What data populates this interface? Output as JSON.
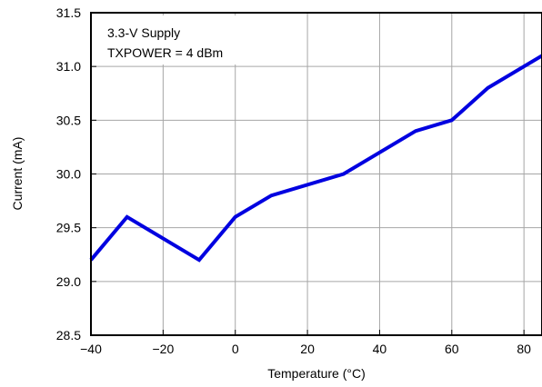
{
  "chart_data": {
    "type": "line",
    "xlabel": "Temperature (°C)",
    "ylabel": "Current (mA)",
    "xlim": [
      -40,
      85
    ],
    "ylim": [
      28.5,
      31.5
    ],
    "x_ticks": [
      -40,
      -20,
      0,
      20,
      40,
      60,
      80
    ],
    "x_tick_labels": [
      "−40",
      "−20",
      "0",
      "20",
      "40",
      "60",
      "80"
    ],
    "y_ticks": [
      28.5,
      29.0,
      29.5,
      30.0,
      30.5,
      31.0,
      31.5
    ],
    "y_tick_labels": [
      "28.5",
      "29.0",
      "29.5",
      "30.0",
      "30.5",
      "31.0",
      "31.5"
    ],
    "grid": true,
    "annotation": [
      "3.3-V Supply",
      "TXPOWER = 4 dBm"
    ],
    "series": [
      {
        "color": "#0000e0",
        "x": [
          -40,
          -30,
          -10,
          0,
          10,
          30,
          50,
          60,
          70,
          85
        ],
        "y": [
          29.2,
          29.6,
          29.2,
          29.6,
          29.8,
          30.0,
          30.4,
          30.5,
          30.8,
          31.1
        ]
      }
    ]
  }
}
